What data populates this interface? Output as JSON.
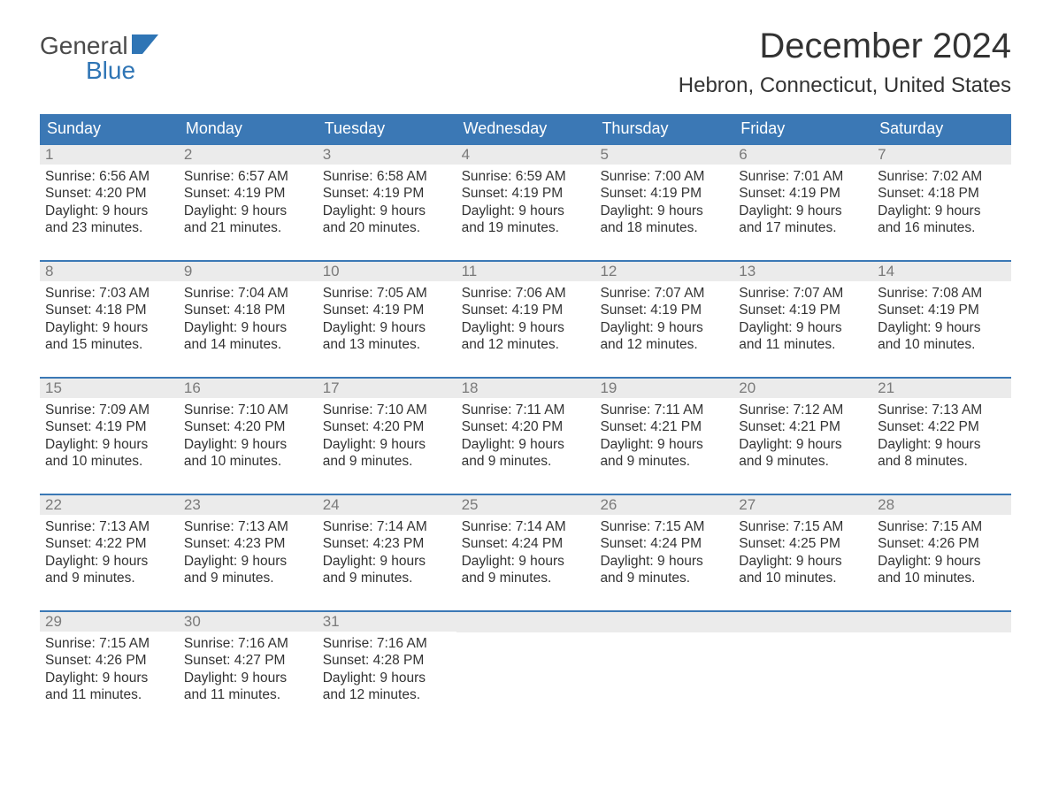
{
  "logo": {
    "top": "General",
    "bottom": "Blue",
    "flag_color": "#2f75b5",
    "top_color": "#4a4a4a"
  },
  "title": "December 2024",
  "location": "Hebron, Connecticut, United States",
  "colors": {
    "header_bg": "#3b78b5",
    "header_text": "#ffffff",
    "daynum_bg": "#ebebeb",
    "daynum_text": "#7a7a7a",
    "body_text": "#333333",
    "week_border": "#3b78b5",
    "page_bg": "#ffffff"
  },
  "day_headers": [
    "Sunday",
    "Monday",
    "Tuesday",
    "Wednesday",
    "Thursday",
    "Friday",
    "Saturday"
  ],
  "weeks": [
    [
      {
        "n": "1",
        "sunrise": "Sunrise: 6:56 AM",
        "sunset": "Sunset: 4:20 PM",
        "d1": "Daylight: 9 hours",
        "d2": "and 23 minutes."
      },
      {
        "n": "2",
        "sunrise": "Sunrise: 6:57 AM",
        "sunset": "Sunset: 4:19 PM",
        "d1": "Daylight: 9 hours",
        "d2": "and 21 minutes."
      },
      {
        "n": "3",
        "sunrise": "Sunrise: 6:58 AM",
        "sunset": "Sunset: 4:19 PM",
        "d1": "Daylight: 9 hours",
        "d2": "and 20 minutes."
      },
      {
        "n": "4",
        "sunrise": "Sunrise: 6:59 AM",
        "sunset": "Sunset: 4:19 PM",
        "d1": "Daylight: 9 hours",
        "d2": "and 19 minutes."
      },
      {
        "n": "5",
        "sunrise": "Sunrise: 7:00 AM",
        "sunset": "Sunset: 4:19 PM",
        "d1": "Daylight: 9 hours",
        "d2": "and 18 minutes."
      },
      {
        "n": "6",
        "sunrise": "Sunrise: 7:01 AM",
        "sunset": "Sunset: 4:19 PM",
        "d1": "Daylight: 9 hours",
        "d2": "and 17 minutes."
      },
      {
        "n": "7",
        "sunrise": "Sunrise: 7:02 AM",
        "sunset": "Sunset: 4:18 PM",
        "d1": "Daylight: 9 hours",
        "d2": "and 16 minutes."
      }
    ],
    [
      {
        "n": "8",
        "sunrise": "Sunrise: 7:03 AM",
        "sunset": "Sunset: 4:18 PM",
        "d1": "Daylight: 9 hours",
        "d2": "and 15 minutes."
      },
      {
        "n": "9",
        "sunrise": "Sunrise: 7:04 AM",
        "sunset": "Sunset: 4:18 PM",
        "d1": "Daylight: 9 hours",
        "d2": "and 14 minutes."
      },
      {
        "n": "10",
        "sunrise": "Sunrise: 7:05 AM",
        "sunset": "Sunset: 4:19 PM",
        "d1": "Daylight: 9 hours",
        "d2": "and 13 minutes."
      },
      {
        "n": "11",
        "sunrise": "Sunrise: 7:06 AM",
        "sunset": "Sunset: 4:19 PM",
        "d1": "Daylight: 9 hours",
        "d2": "and 12 minutes."
      },
      {
        "n": "12",
        "sunrise": "Sunrise: 7:07 AM",
        "sunset": "Sunset: 4:19 PM",
        "d1": "Daylight: 9 hours",
        "d2": "and 12 minutes."
      },
      {
        "n": "13",
        "sunrise": "Sunrise: 7:07 AM",
        "sunset": "Sunset: 4:19 PM",
        "d1": "Daylight: 9 hours",
        "d2": "and 11 minutes."
      },
      {
        "n": "14",
        "sunrise": "Sunrise: 7:08 AM",
        "sunset": "Sunset: 4:19 PM",
        "d1": "Daylight: 9 hours",
        "d2": "and 10 minutes."
      }
    ],
    [
      {
        "n": "15",
        "sunrise": "Sunrise: 7:09 AM",
        "sunset": "Sunset: 4:19 PM",
        "d1": "Daylight: 9 hours",
        "d2": "and 10 minutes."
      },
      {
        "n": "16",
        "sunrise": "Sunrise: 7:10 AM",
        "sunset": "Sunset: 4:20 PM",
        "d1": "Daylight: 9 hours",
        "d2": "and 10 minutes."
      },
      {
        "n": "17",
        "sunrise": "Sunrise: 7:10 AM",
        "sunset": "Sunset: 4:20 PM",
        "d1": "Daylight: 9 hours",
        "d2": "and 9 minutes."
      },
      {
        "n": "18",
        "sunrise": "Sunrise: 7:11 AM",
        "sunset": "Sunset: 4:20 PM",
        "d1": "Daylight: 9 hours",
        "d2": "and 9 minutes."
      },
      {
        "n": "19",
        "sunrise": "Sunrise: 7:11 AM",
        "sunset": "Sunset: 4:21 PM",
        "d1": "Daylight: 9 hours",
        "d2": "and 9 minutes."
      },
      {
        "n": "20",
        "sunrise": "Sunrise: 7:12 AM",
        "sunset": "Sunset: 4:21 PM",
        "d1": "Daylight: 9 hours",
        "d2": "and 9 minutes."
      },
      {
        "n": "21",
        "sunrise": "Sunrise: 7:13 AM",
        "sunset": "Sunset: 4:22 PM",
        "d1": "Daylight: 9 hours",
        "d2": "and 8 minutes."
      }
    ],
    [
      {
        "n": "22",
        "sunrise": "Sunrise: 7:13 AM",
        "sunset": "Sunset: 4:22 PM",
        "d1": "Daylight: 9 hours",
        "d2": "and 9 minutes."
      },
      {
        "n": "23",
        "sunrise": "Sunrise: 7:13 AM",
        "sunset": "Sunset: 4:23 PM",
        "d1": "Daylight: 9 hours",
        "d2": "and 9 minutes."
      },
      {
        "n": "24",
        "sunrise": "Sunrise: 7:14 AM",
        "sunset": "Sunset: 4:23 PM",
        "d1": "Daylight: 9 hours",
        "d2": "and 9 minutes."
      },
      {
        "n": "25",
        "sunrise": "Sunrise: 7:14 AM",
        "sunset": "Sunset: 4:24 PM",
        "d1": "Daylight: 9 hours",
        "d2": "and 9 minutes."
      },
      {
        "n": "26",
        "sunrise": "Sunrise: 7:15 AM",
        "sunset": "Sunset: 4:24 PM",
        "d1": "Daylight: 9 hours",
        "d2": "and 9 minutes."
      },
      {
        "n": "27",
        "sunrise": "Sunrise: 7:15 AM",
        "sunset": "Sunset: 4:25 PM",
        "d1": "Daylight: 9 hours",
        "d2": "and 10 minutes."
      },
      {
        "n": "28",
        "sunrise": "Sunrise: 7:15 AM",
        "sunset": "Sunset: 4:26 PM",
        "d1": "Daylight: 9 hours",
        "d2": "and 10 minutes."
      }
    ],
    [
      {
        "n": "29",
        "sunrise": "Sunrise: 7:15 AM",
        "sunset": "Sunset: 4:26 PM",
        "d1": "Daylight: 9 hours",
        "d2": "and 11 minutes."
      },
      {
        "n": "30",
        "sunrise": "Sunrise: 7:16 AM",
        "sunset": "Sunset: 4:27 PM",
        "d1": "Daylight: 9 hours",
        "d2": "and 11 minutes."
      },
      {
        "n": "31",
        "sunrise": "Sunrise: 7:16 AM",
        "sunset": "Sunset: 4:28 PM",
        "d1": "Daylight: 9 hours",
        "d2": "and 12 minutes."
      },
      null,
      null,
      null,
      null
    ]
  ]
}
